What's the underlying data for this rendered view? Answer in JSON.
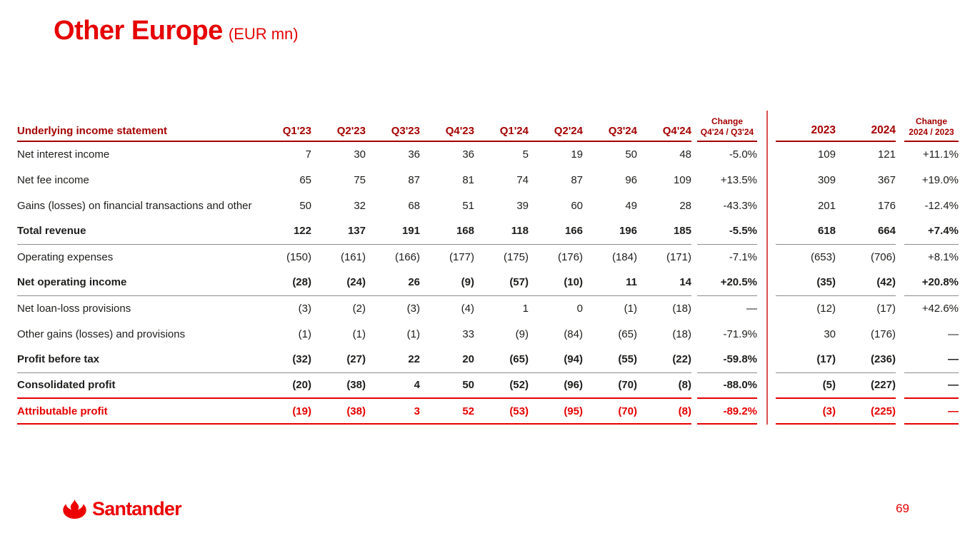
{
  "title": {
    "main": "Other Europe",
    "unit": "(EUR mn)"
  },
  "colors": {
    "brand_red": "#EC0000",
    "header_dark_red": "#A50000",
    "highlight_red": "#E60000",
    "body_text": "#1D1D1B",
    "separator_gray": "#8C8C8C"
  },
  "table": {
    "header": {
      "label": "Underlying income statement",
      "quarters": [
        "Q1'23",
        "Q2'23",
        "Q3'23",
        "Q4'23",
        "Q1'24",
        "Q2'24",
        "Q3'24",
        "Q4'24"
      ],
      "change_qoq_line1": "Change",
      "change_qoq_line2": "Q4'24 / Q3'24",
      "years": [
        "2023",
        "2024"
      ],
      "change_yoy_line1": "Change",
      "change_yoy_line2": "2024 / 2023"
    },
    "rows": [
      {
        "label": "Net interest income",
        "q": [
          "7",
          "30",
          "36",
          "36",
          "5",
          "19",
          "50",
          "48"
        ],
        "chg_qoq": "-5.0%",
        "years": [
          "109",
          "121"
        ],
        "chg_yoy": "+11.1%",
        "style": "normal",
        "border": "none"
      },
      {
        "label": "Net fee income",
        "q": [
          "65",
          "75",
          "87",
          "81",
          "74",
          "87",
          "96",
          "109"
        ],
        "chg_qoq": "+13.5%",
        "years": [
          "309",
          "367"
        ],
        "chg_yoy": "+19.0%",
        "style": "normal",
        "border": "none"
      },
      {
        "label": "Gains (losses) on financial transactions and other",
        "q": [
          "50",
          "32",
          "68",
          "51",
          "39",
          "60",
          "49",
          "28"
        ],
        "chg_qoq": "-43.3%",
        "years": [
          "201",
          "176"
        ],
        "chg_yoy": "-12.4%",
        "style": "normal",
        "border": "none"
      },
      {
        "label": "Total revenue",
        "q": [
          "122",
          "137",
          "191",
          "168",
          "118",
          "166",
          "196",
          "185"
        ],
        "chg_qoq": "-5.5%",
        "years": [
          "618",
          "664"
        ],
        "chg_yoy": "+7.4%",
        "style": "bold",
        "border": "gray"
      },
      {
        "label": "Operating expenses",
        "q": [
          "(150)",
          "(161)",
          "(166)",
          "(177)",
          "(175)",
          "(176)",
          "(184)",
          "(171)"
        ],
        "chg_qoq": "-7.1%",
        "years": [
          "(653)",
          "(706)"
        ],
        "chg_yoy": "+8.1%",
        "style": "normal",
        "border": "none"
      },
      {
        "label": "Net operating income",
        "q": [
          "(28)",
          "(24)",
          "26",
          "(9)",
          "(57)",
          "(10)",
          "11",
          "14"
        ],
        "chg_qoq": "+20.5%",
        "years": [
          "(35)",
          "(42)"
        ],
        "chg_yoy": "+20.8%",
        "style": "bold",
        "border": "gray"
      },
      {
        "label": "Net loan-loss provisions",
        "q": [
          "(3)",
          "(2)",
          "(3)",
          "(4)",
          "1",
          "0",
          "(1)",
          "(18)"
        ],
        "chg_qoq": "—",
        "years": [
          "(12)",
          "(17)"
        ],
        "chg_yoy": "+42.6%",
        "style": "normal",
        "border": "none"
      },
      {
        "label": "Other gains (losses) and provisions",
        "q": [
          "(1)",
          "(1)",
          "(1)",
          "33",
          "(9)",
          "(84)",
          "(65)",
          "(18)"
        ],
        "chg_qoq": "-71.9%",
        "years": [
          "30",
          "(176)"
        ],
        "chg_yoy": "—",
        "style": "normal",
        "border": "none"
      },
      {
        "label": "Profit before tax",
        "q": [
          "(32)",
          "(27)",
          "22",
          "20",
          "(65)",
          "(94)",
          "(55)",
          "(22)"
        ],
        "chg_qoq": "-59.8%",
        "years": [
          "(17)",
          "(236)"
        ],
        "chg_yoy": "—",
        "style": "bold",
        "border": "gray"
      },
      {
        "label": "Consolidated profit",
        "q": [
          "(20)",
          "(38)",
          "4",
          "50",
          "(52)",
          "(96)",
          "(70)",
          "(8)"
        ],
        "chg_qoq": "-88.0%",
        "years": [
          "(5)",
          "(227)"
        ],
        "chg_yoy": "—",
        "style": "bold",
        "border": "red"
      },
      {
        "label": "Attributable profit",
        "q": [
          "(19)",
          "(38)",
          "3",
          "52",
          "(53)",
          "(95)",
          "(70)",
          "(8)"
        ],
        "chg_qoq": "-89.2%",
        "years": [
          "(3)",
          "(225)"
        ],
        "chg_yoy": "—",
        "style": "bold-red",
        "border": "red"
      }
    ]
  },
  "footer": {
    "logo_text": "Santander",
    "page_number": "69"
  }
}
